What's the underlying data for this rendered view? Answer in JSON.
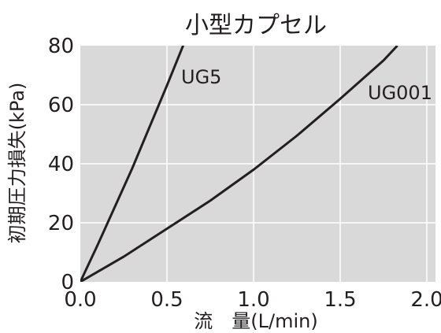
{
  "chart_data": {
    "type": "line",
    "title": "小型カプセル",
    "xlabel": "流　量(L/min)",
    "ylabel": "初期圧力損失(kPa)",
    "xlim": [
      0,
      2.0
    ],
    "ylim": [
      0,
      80
    ],
    "xticks": [
      "0.0",
      "0.5",
      "1.0",
      "1.5",
      "2.0"
    ],
    "yticks": [
      "0",
      "20",
      "40",
      "60",
      "80"
    ],
    "grid": true,
    "series": [
      {
        "name": "UG5",
        "x": [
          0,
          0.1,
          0.2,
          0.3,
          0.4,
          0.5,
          0.6
        ],
        "y": [
          0,
          12.5,
          25.5,
          38.5,
          52.5,
          66.5,
          81
        ]
      },
      {
        "name": "UG001",
        "x": [
          0,
          0.25,
          0.5,
          0.75,
          1.0,
          1.25,
          1.5,
          1.75,
          1.83
        ],
        "y": [
          0,
          8.5,
          18,
          27.5,
          38,
          49.5,
          62,
          75,
          80
        ]
      }
    ]
  },
  "colors": {
    "plot_background": "#d9d9d9",
    "gridline": "#ffffff",
    "line": "#231f20"
  }
}
